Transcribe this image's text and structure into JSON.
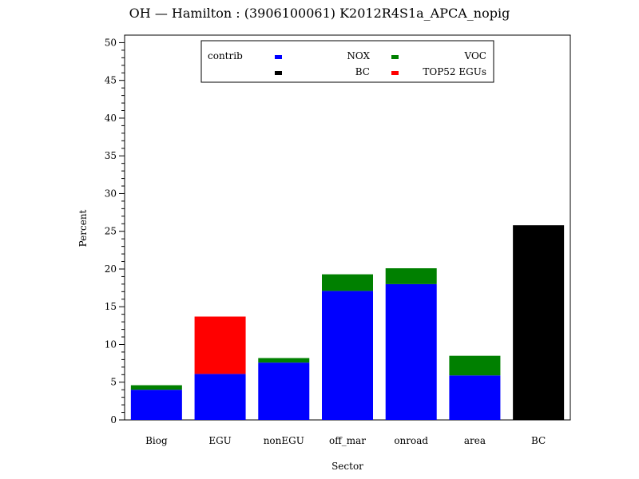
{
  "chart_data": {
    "type": "bar",
    "stacked": true,
    "title": "OH  —  Hamilton : (3906100061) K2012R4S1a_APCA_nopig",
    "xlabel": "Sector",
    "ylabel": "Percent",
    "ylim": [
      0,
      51
    ],
    "yticks": [
      0,
      5,
      10,
      15,
      20,
      25,
      30,
      35,
      40,
      45,
      50
    ],
    "categories": [
      "Biog",
      "EGU",
      "nonEGU",
      "off_mar",
      "onroad",
      "area",
      "BC"
    ],
    "legend": {
      "title": "contrib",
      "placement": "top-center"
    },
    "series": [
      {
        "name": "NOX",
        "color": "#0000ff",
        "values": [
          4.0,
          6.1,
          7.6,
          17.1,
          18.0,
          5.9,
          0
        ]
      },
      {
        "name": "VOC",
        "color": "#008000",
        "values": [
          0.6,
          0,
          0.6,
          2.2,
          2.1,
          2.6,
          0
        ]
      },
      {
        "name": "BC",
        "color": "#000000",
        "values": [
          0,
          0,
          0,
          0,
          0,
          0,
          25.8
        ]
      },
      {
        "name": "TOP52 EGUs",
        "color": "#ff0000",
        "values": [
          0,
          7.6,
          0,
          0,
          0,
          0,
          0
        ]
      }
    ],
    "grid": false
  }
}
